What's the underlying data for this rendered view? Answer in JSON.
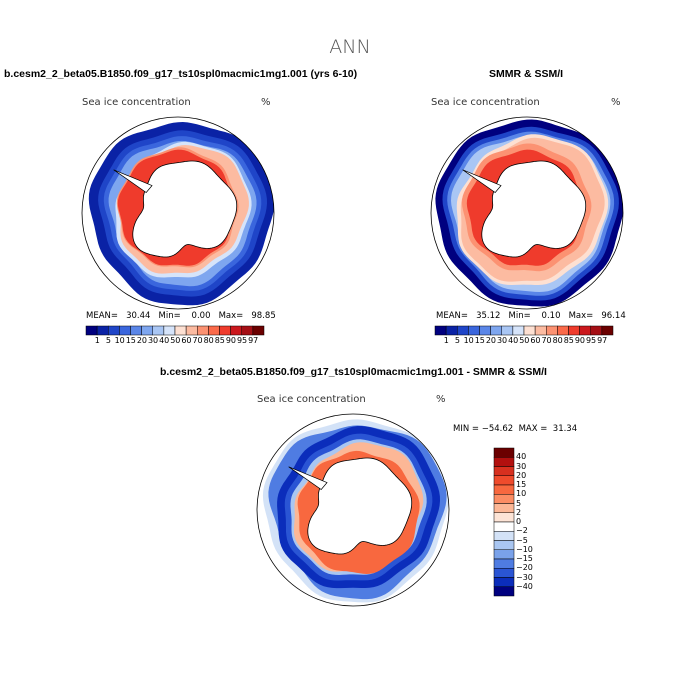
{
  "figure_title": "ANN",
  "chart_data": [
    {
      "type": "heatmap",
      "projection": "south polar stereographic",
      "case_title": "b.cesm2_2_beta05.B1850.f09_g17_ts10spl0macmic1mg1.001 (yrs 6-10)",
      "title": "Sea ice concentration",
      "units": "%",
      "stats": {
        "mean_label": "MEAN=",
        "mean": "30.44",
        "min_label": "Min=",
        "min": "0.00",
        "max_label": "Max=",
        "max": "98.85"
      },
      "stats_text": "MEAN=   30.44   Min=    0.00   Max=   98.85",
      "colorbar_levels": [
        "1",
        "5",
        "10",
        "15",
        "20",
        "30",
        "40",
        "50",
        "60",
        "70",
        "80",
        "85",
        "90",
        "95",
        "97"
      ],
      "colorbar_colors": [
        "#00007f",
        "#0a22a5",
        "#1f45c8",
        "#3a66dd",
        "#5a86e8",
        "#7ea6ef",
        "#a9c6f4",
        "#d6e4fa",
        "#fde0d2",
        "#fcbba1",
        "#fc9272",
        "#fb6a4a",
        "#ef3b2c",
        "#cb181d",
        "#a50f15",
        "#6b0000"
      ]
    },
    {
      "type": "heatmap",
      "projection": "south polar stereographic",
      "case_title": "SMMR & SSM/I",
      "title": "Sea ice concentration",
      "units": "%",
      "stats": {
        "mean_label": "MEAN=",
        "mean": "35.12",
        "min_label": "Min=",
        "min": "0.10",
        "max_label": "Max=",
        "max": "96.14"
      },
      "stats_text": "MEAN=   35.12   Min=    0.10   Max=   96.14",
      "colorbar_levels": [
        "1",
        "5",
        "10",
        "15",
        "20",
        "30",
        "40",
        "50",
        "60",
        "70",
        "80",
        "85",
        "90",
        "95",
        "97"
      ],
      "colorbar_colors": [
        "#00007f",
        "#0a22a5",
        "#1f45c8",
        "#3a66dd",
        "#5a86e8",
        "#7ea6ef",
        "#a9c6f4",
        "#d6e4fa",
        "#fde0d2",
        "#fcbba1",
        "#fc9272",
        "#fb6a4a",
        "#ef3b2c",
        "#cb181d",
        "#a50f15",
        "#6b0000"
      ]
    },
    {
      "type": "heatmap",
      "projection": "south polar stereographic",
      "case_title": "b.cesm2_2_beta05.B1850.f09_g17_ts10spl0macmic1mg1.001 - SMMR & SSM/I",
      "title": "Sea ice concentration",
      "units": "%",
      "stats": {
        "min_label": "MIN =",
        "min": "-54.62",
        "max_label": "MAX =",
        "max": "31.34"
      },
      "stats_text": "MIN = −54.62  MAX =  31.34",
      "colorbar_levels": [
        "40",
        "30",
        "20",
        "15",
        "10",
        "5",
        "2",
        "0",
        "−2",
        "−5",
        "−10",
        "−15",
        "−20",
        "−30",
        "−40"
      ],
      "colorbar_colors": [
        "#6b0000",
        "#b2100f",
        "#d7301f",
        "#ef4b2c",
        "#f8683f",
        "#fc8d64",
        "#fcb796",
        "#fde4d6",
        "#ffffff",
        "#d3e2f7",
        "#a9c6f1",
        "#7aa2ea",
        "#4f7ce2",
        "#2a55d4",
        "#0b2dbb",
        "#00007f"
      ]
    }
  ]
}
